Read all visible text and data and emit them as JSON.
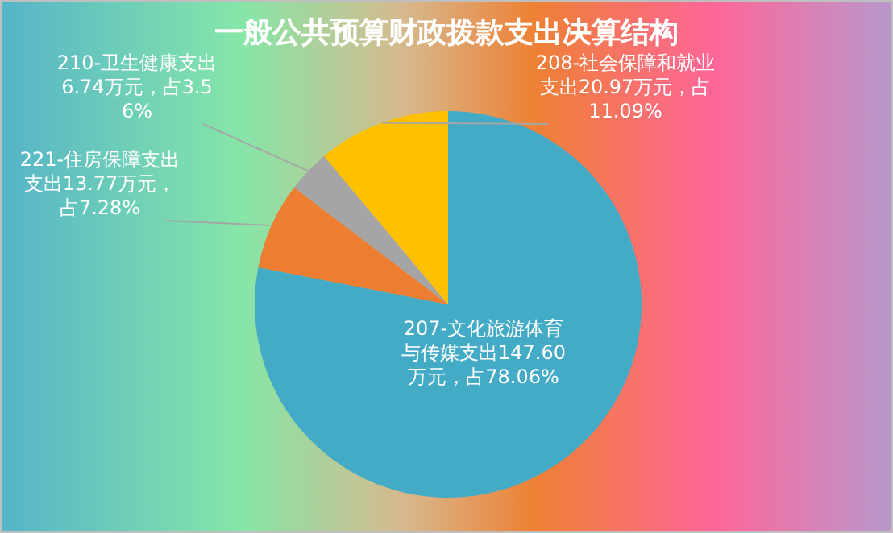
{
  "chart_data": {
    "type": "pie",
    "title": "一般公共预算财政拨款支出决算结构",
    "categories": [
      "207-文化旅游体育与传媒支出147.60万元，占78.06%",
      "221-住房保障支出支出13.77万元，占7.28%",
      "210-卫生健康支出6.74万元，占3.56%",
      "208-社会保障和就业支出20.97万元，占11.09%"
    ],
    "values": [
      147.6,
      13.77,
      6.74,
      20.97
    ],
    "colors": [
      "#44abc6",
      "#ed7d31",
      "#a5a5a5",
      "#ffc000"
    ]
  }
}
